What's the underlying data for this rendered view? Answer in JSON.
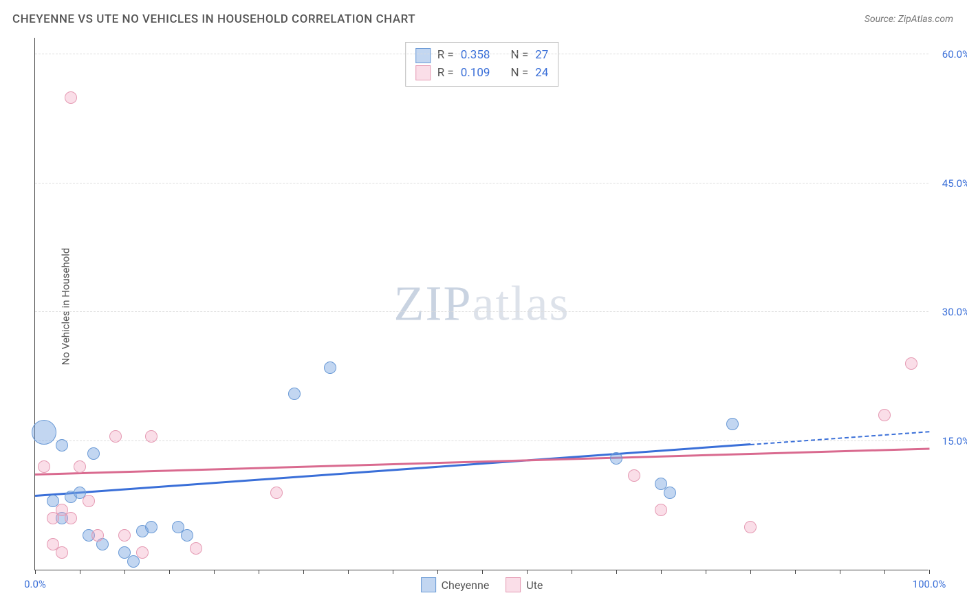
{
  "title": "CHEYENNE VS UTE NO VEHICLES IN HOUSEHOLD CORRELATION CHART",
  "source": "Source: ZipAtlas.com",
  "ylabel": "No Vehicles in Household",
  "watermark_zip": "ZIP",
  "watermark_rest": "atlas",
  "chart": {
    "type": "scatter",
    "background_color": "#ffffff",
    "grid_color": "#dddddd",
    "axis_color": "#444444",
    "tick_label_color": "#3a6fd8",
    "xlim": [
      0,
      100
    ],
    "ylim": [
      0,
      62
    ],
    "yticks": [
      {
        "v": 15,
        "label": "15.0%"
      },
      {
        "v": 30,
        "label": "30.0%"
      },
      {
        "v": 45,
        "label": "45.0%"
      },
      {
        "v": 60,
        "label": "60.0%"
      }
    ],
    "xticks": [
      0,
      5,
      10,
      15,
      20,
      25,
      30,
      35,
      40,
      45,
      50,
      55,
      60,
      65,
      70,
      75,
      80,
      85,
      90,
      95,
      100
    ],
    "xtick_labels": [
      {
        "v": 0,
        "label": "0.0%"
      },
      {
        "v": 100,
        "label": "100.0%"
      }
    ],
    "series": [
      {
        "key": "cheyenne",
        "label": "Cheyenne",
        "fill": "rgba(120,165,225,0.45)",
        "stroke": "#6a9ad6",
        "line_color": "#3a6fd8",
        "marker_r": 9,
        "R_label": "R = ",
        "R": "0.358",
        "N_label": "N = ",
        "N": "27",
        "regression": {
          "x1": 0,
          "y1": 8.5,
          "x2": 80,
          "y2": 14.5,
          "dash_to_x": 100,
          "dash_to_y": 16.0
        },
        "points": [
          {
            "x": 1,
            "y": 16,
            "r": 18
          },
          {
            "x": 3,
            "y": 14.5
          },
          {
            "x": 6.5,
            "y": 13.5
          },
          {
            "x": 2,
            "y": 8
          },
          {
            "x": 4,
            "y": 8.5
          },
          {
            "x": 5,
            "y": 9
          },
          {
            "x": 3,
            "y": 6
          },
          {
            "x": 6,
            "y": 4
          },
          {
            "x": 7.5,
            "y": 3
          },
          {
            "x": 10,
            "y": 2
          },
          {
            "x": 11,
            "y": 1
          },
          {
            "x": 12,
            "y": 4.5
          },
          {
            "x": 13,
            "y": 5
          },
          {
            "x": 16,
            "y": 5
          },
          {
            "x": 17,
            "y": 4
          },
          {
            "x": 29,
            "y": 20.5
          },
          {
            "x": 33,
            "y": 23.5
          },
          {
            "x": 65,
            "y": 13
          },
          {
            "x": 70,
            "y": 10
          },
          {
            "x": 71,
            "y": 9
          },
          {
            "x": 78,
            "y": 17
          }
        ]
      },
      {
        "key": "ute",
        "label": "Ute",
        "fill": "rgba(240,160,190,0.35)",
        "stroke": "#e59ab3",
        "line_color": "#d96a8f",
        "marker_r": 9,
        "R_label": "R = ",
        "R": "0.109",
        "N_label": "N = ",
        "N": "24",
        "regression": {
          "x1": 0,
          "y1": 11,
          "x2": 100,
          "y2": 14
        },
        "points": [
          {
            "x": 4,
            "y": 55
          },
          {
            "x": 1,
            "y": 12
          },
          {
            "x": 5,
            "y": 12
          },
          {
            "x": 3,
            "y": 7
          },
          {
            "x": 2,
            "y": 6
          },
          {
            "x": 4,
            "y": 6
          },
          {
            "x": 6,
            "y": 8
          },
          {
            "x": 2,
            "y": 3
          },
          {
            "x": 3,
            "y": 2
          },
          {
            "x": 7,
            "y": 4
          },
          {
            "x": 9,
            "y": 15.5
          },
          {
            "x": 10,
            "y": 4
          },
          {
            "x": 13,
            "y": 15.5
          },
          {
            "x": 12,
            "y": 2
          },
          {
            "x": 18,
            "y": 2.5
          },
          {
            "x": 27,
            "y": 9
          },
          {
            "x": 67,
            "y": 11
          },
          {
            "x": 70,
            "y": 7
          },
          {
            "x": 80,
            "y": 5
          },
          {
            "x": 95,
            "y": 18
          },
          {
            "x": 98,
            "y": 24
          }
        ]
      }
    ]
  }
}
